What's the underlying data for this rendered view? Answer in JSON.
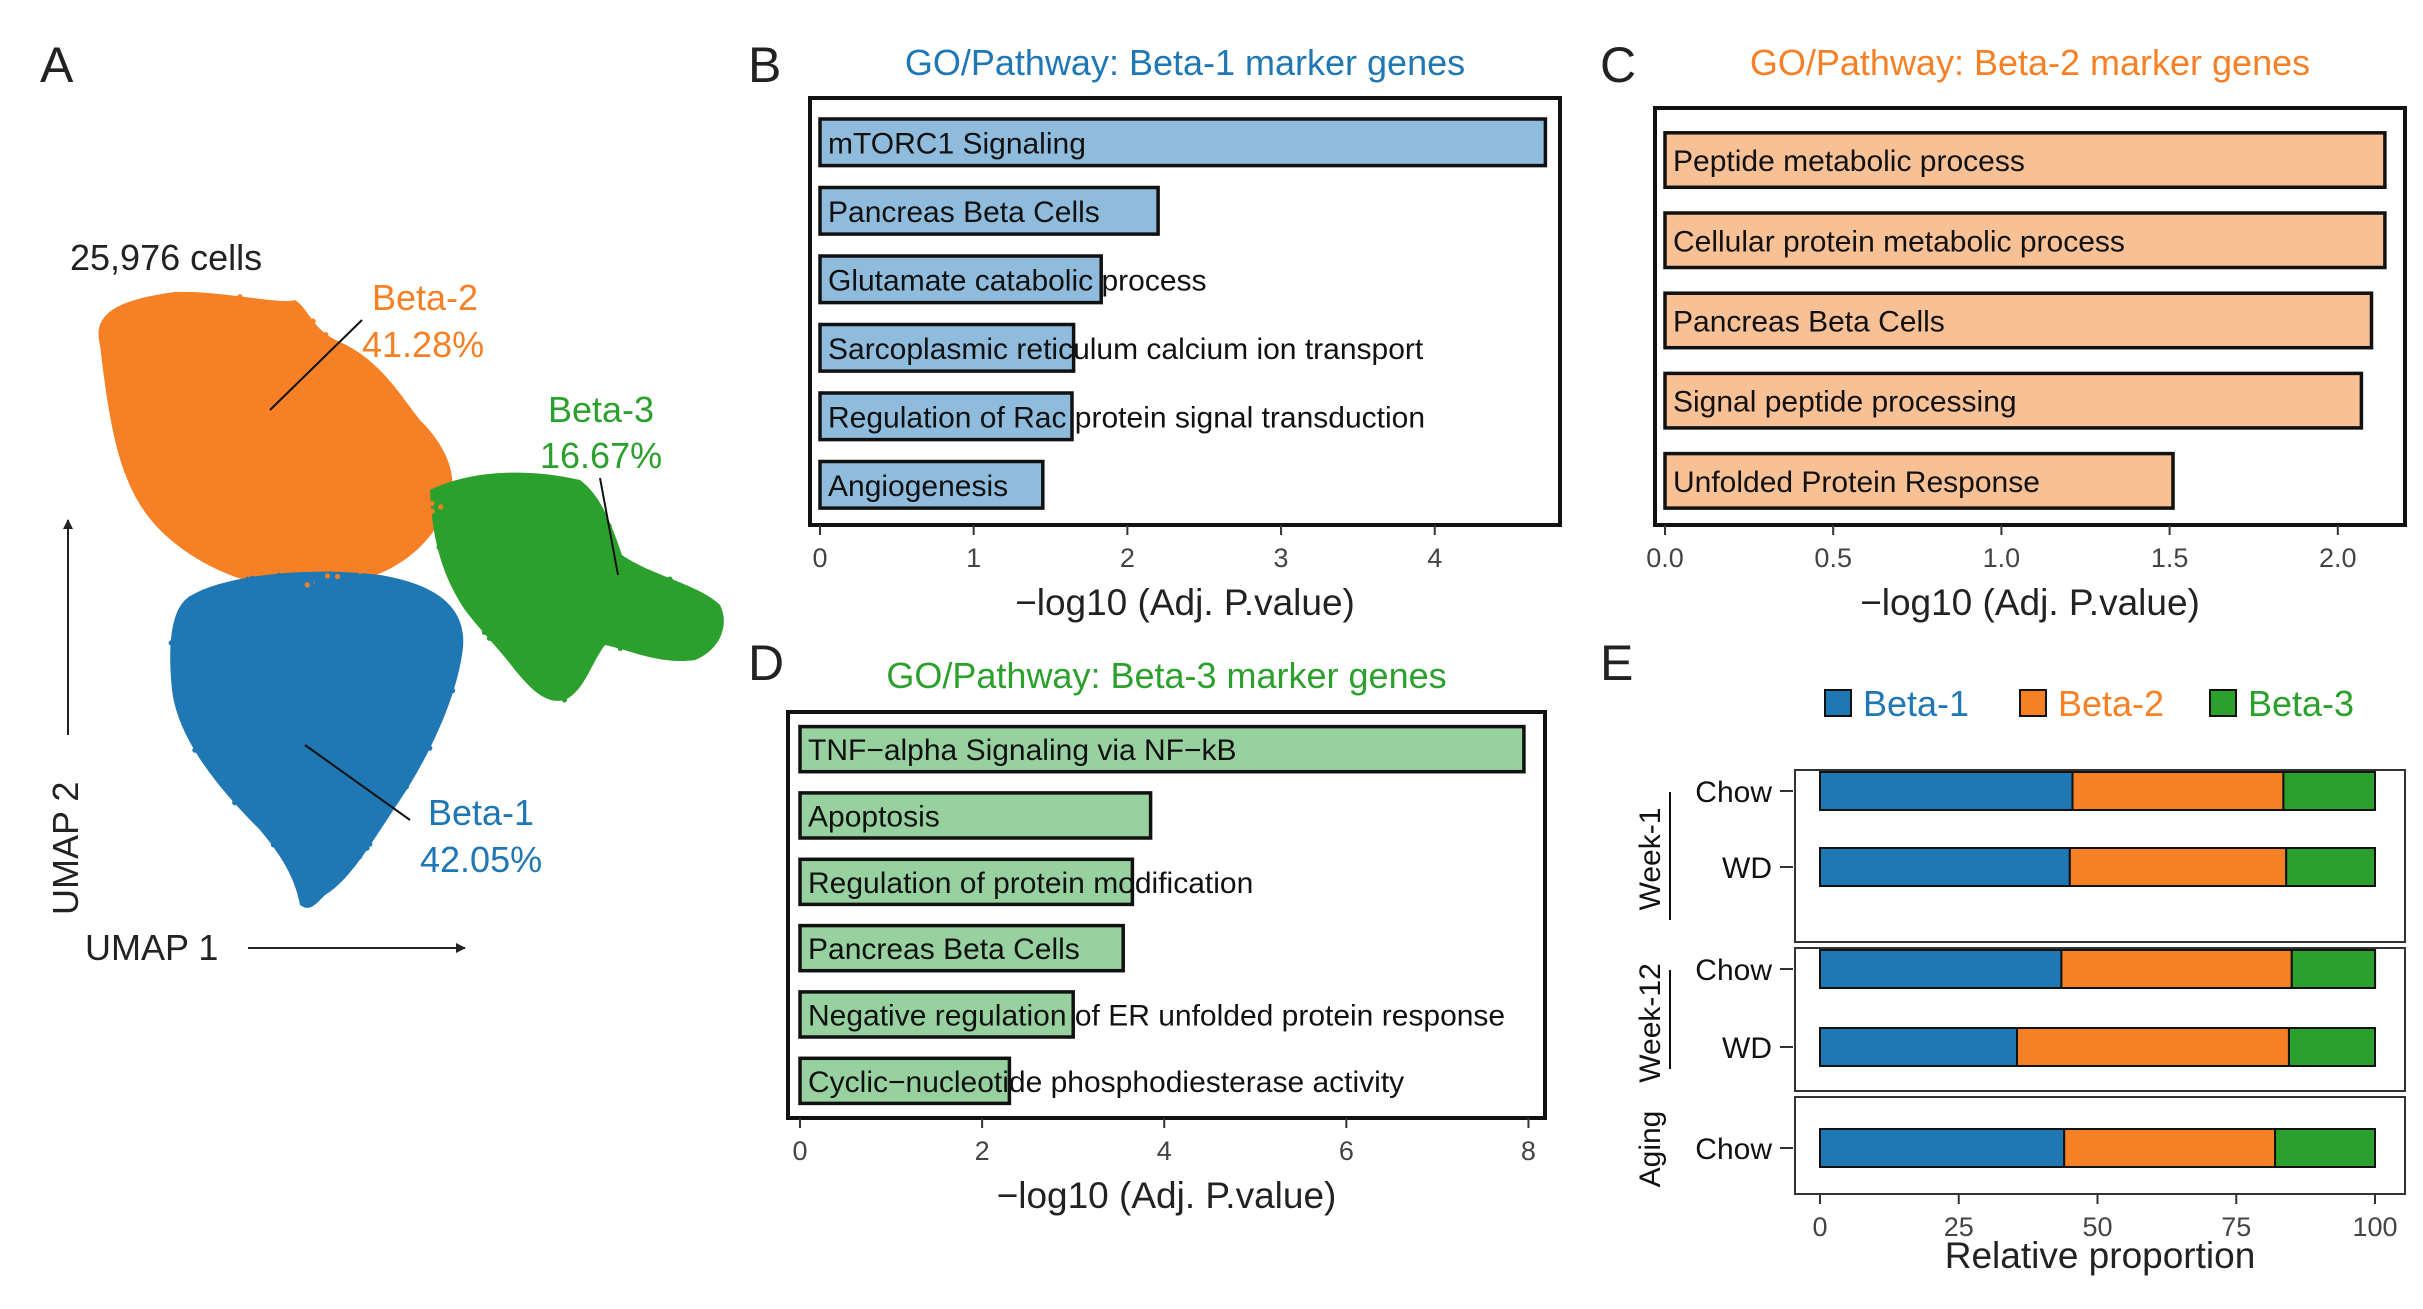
{
  "colors": {
    "beta1": "#1f77b4",
    "beta2": "#f58025",
    "beta3": "#2ca02c",
    "beta1_bar": "#8fbbdd",
    "beta2_bar": "#f8c095",
    "beta3_bar": "#97d1a0"
  },
  "panels": {
    "A": "A",
    "B": "B",
    "C": "C",
    "D": "D",
    "E": "E"
  },
  "umap": {
    "cell_count": "25,976 cells",
    "xlabel": "UMAP 1",
    "ylabel": "UMAP 2",
    "clusters": [
      {
        "name": "Beta-1",
        "pct": "42.05%"
      },
      {
        "name": "Beta-2",
        "pct": "41.28%"
      },
      {
        "name": "Beta-3",
        "pct": "16.67%"
      }
    ]
  },
  "chart_data": [
    {
      "id": "B",
      "type": "bar",
      "orientation": "horizontal",
      "title": "GO/Pathway: Beta-1 marker genes",
      "xlabel": "−log10 (Adj. P.value)",
      "xlim": [
        0,
        4.75
      ],
      "xticks": [
        0,
        1,
        2,
        3,
        4
      ],
      "xtick_labels": [
        "0",
        "1",
        "2",
        "3",
        "4"
      ],
      "categories": [
        "mTORC1 Signaling",
        "Pancreas Beta Cells",
        "Glutamate catabolic process",
        "Sarcoplasmic reticulum calcium ion transport",
        "Regulation of Rac protein signal transduction",
        "Angiogenesis"
      ],
      "values": [
        4.72,
        2.2,
        1.83,
        1.65,
        1.64,
        1.45
      ]
    },
    {
      "id": "C",
      "type": "bar",
      "orientation": "horizontal",
      "title": "GO/Pathway: Beta-2 marker genes",
      "xlabel": "−log10 (Adj. P.value)",
      "xlim": [
        0,
        2.17
      ],
      "xticks": [
        0,
        0.5,
        1.0,
        1.5,
        2.0
      ],
      "xtick_labels": [
        "0.0",
        "0.5",
        "1.0",
        "1.5",
        "2.0"
      ],
      "categories": [
        "Peptide metabolic process",
        "Cellular protein metabolic process",
        "Pancreas Beta Cells",
        "Signal peptide processing",
        "Unfolded Protein Response"
      ],
      "values": [
        2.14,
        2.14,
        2.1,
        2.07,
        1.51
      ]
    },
    {
      "id": "D",
      "type": "bar",
      "orientation": "horizontal",
      "title": "GO/Pathway: Beta-3 marker genes",
      "xlabel": "−log10 (Adj. P.value)",
      "xlim": [
        0,
        8.05
      ],
      "xticks": [
        0,
        2,
        4,
        6,
        8
      ],
      "xtick_labels": [
        "0",
        "2",
        "4",
        "6",
        "8"
      ],
      "categories": [
        "TNF−alpha Signaling via NF−kB",
        "Apoptosis",
        "Regulation of protein modification",
        "Pancreas Beta Cells",
        "Negative regulation of ER unfolded protein response",
        "Cyclic−nucleotide phosphodiesterase activity"
      ],
      "values": [
        7.95,
        3.85,
        3.65,
        3.55,
        3.0,
        2.3
      ]
    },
    {
      "id": "E",
      "type": "bar",
      "orientation": "horizontal",
      "stacked": true,
      "xlabel": "Relative proportion",
      "xlim": [
        0,
        100
      ],
      "xticks": [
        0,
        25,
        50,
        75,
        100
      ],
      "xtick_labels": [
        "0",
        "25",
        "50",
        "75",
        "100"
      ],
      "legend": [
        "Beta-1",
        "Beta-2",
        "Beta-3"
      ],
      "groups": [
        {
          "label": "Week-1",
          "rows": [
            {
              "label": "Chow",
              "values": [
                45.5,
                38.0,
                16.5
              ]
            },
            {
              "label": "WD",
              "values": [
                45.0,
                39.0,
                16.0
              ]
            }
          ]
        },
        {
          "label": "Week-12",
          "rows": [
            {
              "label": "Chow",
              "values": [
                43.5,
                41.5,
                15.0
              ]
            },
            {
              "label": "WD",
              "values": [
                35.5,
                49.0,
                15.5
              ]
            }
          ]
        },
        {
          "label": "Aging",
          "rows": [
            {
              "label": "Chow",
              "values": [
                44.0,
                38.0,
                18.0
              ]
            }
          ]
        }
      ]
    }
  ]
}
